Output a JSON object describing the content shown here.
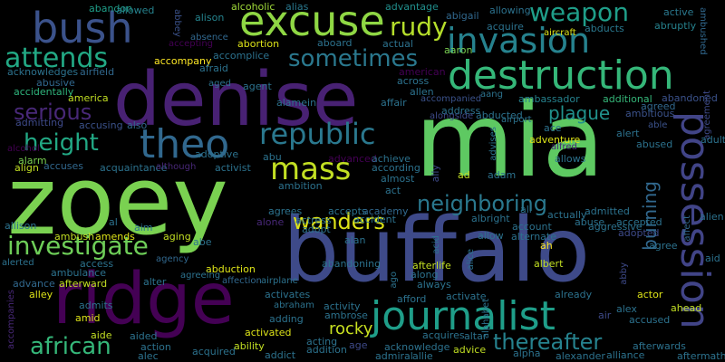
{
  "words": [
    {
      "text": "mia",
      "color": "#5ec962"
    },
    {
      "text": "zoey",
      "color": "#7ad151"
    },
    {
      "text": "buffalo",
      "color": "#3e4a89"
    },
    {
      "text": "denise",
      "color": "#482173"
    },
    {
      "text": "ridge",
      "color": "#440154"
    },
    {
      "text": "excuse",
      "color": "#8fd744"
    },
    {
      "text": "destruction",
      "color": "#35b779"
    },
    {
      "text": "invasion",
      "color": "#26828e"
    },
    {
      "text": "theo",
      "color": "#31688e"
    },
    {
      "text": "journalist",
      "color": "#1f9e89"
    },
    {
      "text": "bush",
      "color": "#3b528b"
    },
    {
      "text": "possession",
      "color": "#414487"
    },
    {
      "text": "republic",
      "color": "#2a788e"
    },
    {
      "text": "mass",
      "color": "#c2df23"
    },
    {
      "text": "investigate",
      "color": "#6ece58"
    },
    {
      "text": "attends",
      "color": "#22a884"
    },
    {
      "text": "weapon",
      "color": "#1f9e89"
    },
    {
      "text": "rudy",
      "color": "#b5de2b"
    },
    {
      "text": "sometimes",
      "color": "#2a788e"
    },
    {
      "text": "african",
      "color": "#35b779"
    },
    {
      "text": "height",
      "color": "#22a884"
    },
    {
      "text": "thereafter",
      "color": "#26828e"
    },
    {
      "text": "neighboring",
      "color": "#2a788e"
    },
    {
      "text": "wanders",
      "color": "#dde318"
    },
    {
      "text": "serious",
      "color": "#482878"
    },
    {
      "text": "plague",
      "color": "#21918c"
    },
    {
      "text": "burning",
      "color": "#31688e"
    },
    {
      "text": "rocky",
      "color": "#c8e020"
    },
    {
      "text": "abandon",
      "color": "#1f9e89"
    },
    {
      "text": "allowed",
      "color": "#26828e"
    },
    {
      "text": "abbey",
      "color": "#3b528b"
    },
    {
      "text": "alison",
      "color": "#25848e"
    },
    {
      "text": "alcoholic",
      "color": "#a0da39"
    },
    {
      "text": "alias",
      "color": "#2a788e"
    },
    {
      "text": "advantage",
      "color": "#218f8d"
    },
    {
      "text": "abigail",
      "color": "#31688e"
    },
    {
      "text": "allowing",
      "color": "#2c728e"
    },
    {
      "text": "active",
      "color": "#2a788e"
    },
    {
      "text": "abruptly",
      "color": "#26828e"
    },
    {
      "text": "acquire",
      "color": "#2c728e"
    },
    {
      "text": "aircraft",
      "color": "#dde318"
    },
    {
      "text": "abducts",
      "color": "#2a788e"
    },
    {
      "text": "ambushed",
      "color": "#31688e"
    },
    {
      "text": "abortion",
      "color": "#dde318"
    },
    {
      "text": "aboard",
      "color": "#2c728e"
    },
    {
      "text": "actual",
      "color": "#2c728e"
    },
    {
      "text": "aaron",
      "color": "#7ad151"
    },
    {
      "text": "absence",
      "color": "#31688e"
    },
    {
      "text": "accompany",
      "color": "#fde725"
    },
    {
      "text": "accomplice",
      "color": "#2c728e"
    },
    {
      "text": "afraid",
      "color": "#2c728e"
    },
    {
      "text": "acknowledges",
      "color": "#2c728e"
    },
    {
      "text": "airfield",
      "color": "#31688e"
    },
    {
      "text": "abusive",
      "color": "#31688e"
    },
    {
      "text": "america",
      "color": "#c2df23"
    },
    {
      "text": "accidentally",
      "color": "#2fb47c"
    },
    {
      "text": "agent",
      "color": "#2c728e"
    },
    {
      "text": "american",
      "color": "#440154"
    },
    {
      "text": "across",
      "color": "#2c728e"
    },
    {
      "text": "allen",
      "color": "#2c728e"
    },
    {
      "text": "accompanied",
      "color": "#3b528b"
    },
    {
      "text": "ambassador",
      "color": "#26828e"
    },
    {
      "text": "additional",
      "color": "#35b779"
    },
    {
      "text": "abandoned",
      "color": "#3b528b"
    },
    {
      "text": "agreed",
      "color": "#31688e"
    },
    {
      "text": "ambitious",
      "color": "#3b528b"
    },
    {
      "text": "agreement",
      "color": "#3e4a89"
    },
    {
      "text": "admitting",
      "color": "#3e4a89"
    },
    {
      "text": "accusing",
      "color": "#3b528b"
    },
    {
      "text": "also",
      "color": "#31688e"
    },
    {
      "text": "alamein",
      "color": "#2c728e"
    },
    {
      "text": "affair",
      "color": "#2c728e"
    },
    {
      "text": "address",
      "color": "#2c728e"
    },
    {
      "text": "abducted",
      "color": "#2c728e"
    },
    {
      "text": "airport",
      "color": "#2c728e"
    },
    {
      "text": "ace",
      "color": "#2c728e"
    },
    {
      "text": "alert",
      "color": "#2c728e"
    },
    {
      "text": "able",
      "color": "#3b528b"
    },
    {
      "text": "alarm",
      "color": "#7ad151"
    },
    {
      "text": "align",
      "color": "#c2df23"
    },
    {
      "text": "accuses",
      "color": "#31688e"
    },
    {
      "text": "acquaintance",
      "color": "#2c728e"
    },
    {
      "text": "although",
      "color": "#482878"
    },
    {
      "text": "adoptive",
      "color": "#2c728e"
    },
    {
      "text": "activist",
      "color": "#2c728e"
    },
    {
      "text": "abu",
      "color": "#2c728e"
    },
    {
      "text": "ambition",
      "color": "#2c728e"
    },
    {
      "text": "advanced",
      "color": "#440154"
    },
    {
      "text": "achieve",
      "color": "#2c728e"
    },
    {
      "text": "according",
      "color": "#2c728e"
    },
    {
      "text": "almost",
      "color": "#2c728e"
    },
    {
      "text": "act",
      "color": "#2c728e"
    },
    {
      "text": "ally",
      "color": "#3e4a89"
    },
    {
      "text": "ad",
      "color": "#c2df23"
    },
    {
      "text": "adam",
      "color": "#2c728e"
    },
    {
      "text": "advises",
      "color": "#2c728e"
    },
    {
      "text": "adventure",
      "color": "#dde318"
    },
    {
      "text": "alfred",
      "color": "#482878"
    },
    {
      "text": "allows",
      "color": "#2c728e"
    },
    {
      "text": "abused",
      "color": "#2c728e"
    },
    {
      "text": "adult",
      "color": "#2c728e"
    },
    {
      "text": "alien",
      "color": "#2c728e"
    },
    {
      "text": "affect",
      "color": "#31688e"
    },
    {
      "text": "allison",
      "color": "#2c728e"
    },
    {
      "text": "al",
      "color": "#2c728e"
    },
    {
      "text": "ambush",
      "color": "#c2df23"
    },
    {
      "text": "amends",
      "color": "#dde318"
    },
    {
      "text": "aim",
      "color": "#2c728e"
    },
    {
      "text": "agrees",
      "color": "#2c728e"
    },
    {
      "text": "alone",
      "color": "#482878"
    },
    {
      "text": "actress",
      "color": "#2c728e"
    },
    {
      "text": "accepts",
      "color": "#2c728e"
    },
    {
      "text": "accident",
      "color": "#2c728e"
    },
    {
      "text": "academy",
      "color": "#31688e"
    },
    {
      "text": "adopt",
      "color": "#2c728e"
    },
    {
      "text": "alan",
      "color": "#2c728e"
    },
    {
      "text": "albright",
      "color": "#2c728e"
    },
    {
      "text": "allow",
      "color": "#2c728e"
    },
    {
      "text": "ali",
      "color": "#2c728e"
    },
    {
      "text": "account",
      "color": "#2c728e"
    },
    {
      "text": "alternate",
      "color": "#2c728e"
    },
    {
      "text": "actually",
      "color": "#2c728e"
    },
    {
      "text": "abuse",
      "color": "#2c728e"
    },
    {
      "text": "admitted",
      "color": "#2c728e"
    },
    {
      "text": "aggressive",
      "color": "#2c728e"
    },
    {
      "text": "accepted",
      "color": "#2c728e"
    },
    {
      "text": "adopted",
      "color": "#3e4a89"
    },
    {
      "text": "ah",
      "color": "#fde725"
    },
    {
      "text": "agree",
      "color": "#2c728e"
    },
    {
      "text": "aid",
      "color": "#2c728e"
    },
    {
      "text": "aging",
      "color": "#c2df23"
    },
    {
      "text": "abe",
      "color": "#2c728e"
    },
    {
      "text": "agency",
      "color": "#31688e"
    },
    {
      "text": "acid",
      "color": "#2c728e"
    },
    {
      "text": "alice",
      "color": "#2c728e"
    },
    {
      "text": "albert",
      "color": "#c2df23"
    },
    {
      "text": "alerted",
      "color": "#2c728e"
    },
    {
      "text": "access",
      "color": "#2c728e"
    },
    {
      "text": "ambulance",
      "color": "#2c728e"
    },
    {
      "text": "advance",
      "color": "#31688e"
    },
    {
      "text": "alley",
      "color": "#dde318"
    },
    {
      "text": "afterward",
      "color": "#c2df23"
    },
    {
      "text": "alter",
      "color": "#2c728e"
    },
    {
      "text": "abduction",
      "color": "#dde318"
    },
    {
      "text": "affection",
      "color": "#31688e"
    },
    {
      "text": "agreeing",
      "color": "#2c728e"
    },
    {
      "text": "airplane",
      "color": "#2c728e"
    },
    {
      "text": "afterlife",
      "color": "#c2df23"
    },
    {
      "text": "along",
      "color": "#2c728e"
    },
    {
      "text": "always",
      "color": "#2c728e"
    },
    {
      "text": "ago",
      "color": "#2c728e"
    },
    {
      "text": "abby",
      "color": "#3e4a89"
    },
    {
      "text": "actor",
      "color": "#dde318"
    },
    {
      "text": "alex",
      "color": "#2c728e"
    },
    {
      "text": "accused",
      "color": "#2c728e"
    },
    {
      "text": "ahead",
      "color": "#c2df23"
    },
    {
      "text": "already",
      "color": "#2c728e"
    },
    {
      "text": "accompanies",
      "color": "#482878"
    },
    {
      "text": "admits",
      "color": "#2c728e"
    },
    {
      "text": "amid",
      "color": "#dde318"
    },
    {
      "text": "activates",
      "color": "#2c728e"
    },
    {
      "text": "abraham",
      "color": "#2c728e"
    },
    {
      "text": "activity",
      "color": "#2c728e"
    },
    {
      "text": "adding",
      "color": "#2c728e"
    },
    {
      "text": "ambrose",
      "color": "#2c728e"
    },
    {
      "text": "abandoning",
      "color": "#2c728e"
    },
    {
      "text": "afford",
      "color": "#2c728e"
    },
    {
      "text": "activate",
      "color": "#2c728e"
    },
    {
      "text": "air",
      "color": "#3e4a89"
    },
    {
      "text": "aide",
      "color": "#c2df23"
    },
    {
      "text": "aided",
      "color": "#2c728e"
    },
    {
      "text": "action",
      "color": "#2c728e"
    },
    {
      "text": "alec",
      "color": "#2c728e"
    },
    {
      "text": "acquired",
      "color": "#2c728e"
    },
    {
      "text": "ability",
      "color": "#c2df23"
    },
    {
      "text": "activated",
      "color": "#dde318"
    },
    {
      "text": "addict",
      "color": "#2c728e"
    },
    {
      "text": "acting",
      "color": "#2c728e"
    },
    {
      "text": "addition",
      "color": "#2c728e"
    },
    {
      "text": "age",
      "color": "#3e4a89"
    },
    {
      "text": "acknowledge",
      "color": "#2c728e"
    },
    {
      "text": "admiral",
      "color": "#2c728e"
    },
    {
      "text": "allie",
      "color": "#2c728e"
    },
    {
      "text": "acquires",
      "color": "#2c728e"
    },
    {
      "text": "altar",
      "color": "#2c728e"
    },
    {
      "text": "advice",
      "color": "#c2df23"
    },
    {
      "text": "aang",
      "color": "#2c728e"
    },
    {
      "text": "alphabet",
      "color": "#2c728e"
    },
    {
      "text": "alpha",
      "color": "#2c728e"
    },
    {
      "text": "alexander",
      "color": "#2c728e"
    },
    {
      "text": "alliance",
      "color": "#2c728e"
    },
    {
      "text": "afterwards",
      "color": "#2c728e"
    },
    {
      "text": "aftermath",
      "color": "#2c728e"
    },
    {
      "text": "alcohol",
      "color": "#440154"
    },
    {
      "text": "accepting",
      "color": "#440154"
    },
    {
      "text": "aged",
      "color": "#2c728e"
    },
    {
      "text": "alongside",
      "color": "#3e4a89"
    }
  ]
}
